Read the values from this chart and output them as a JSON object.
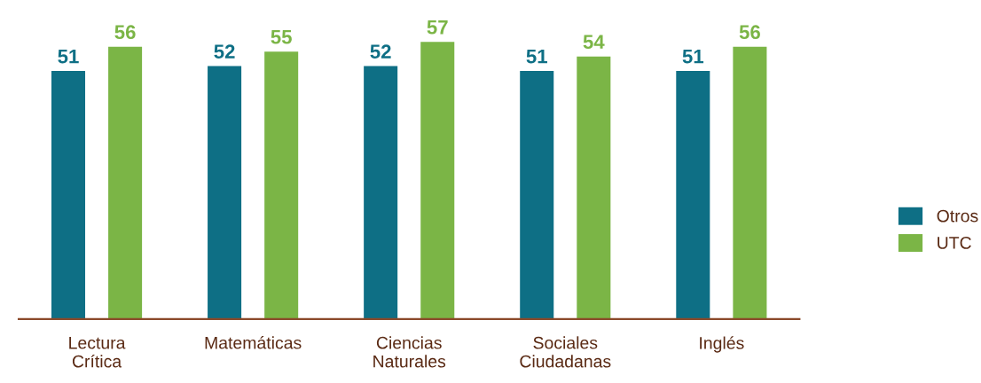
{
  "chart_data": {
    "type": "bar",
    "categories": [
      "Lectura\nCrítica",
      "Matemáticas",
      "Ciencias\nNaturales",
      "Sociales\nCiudadanas",
      "Inglés"
    ],
    "series": [
      {
        "name": "Otros",
        "color": "#0e6f85",
        "values": [
          51,
          52,
          52,
          51,
          51
        ]
      },
      {
        "name": "UTC",
        "color": "#7bb546",
        "values": [
          56,
          55,
          57,
          54,
          56
        ]
      }
    ],
    "tick_labels": "x",
    "data_labels": true,
    "grid": false,
    "legend": "right"
  }
}
